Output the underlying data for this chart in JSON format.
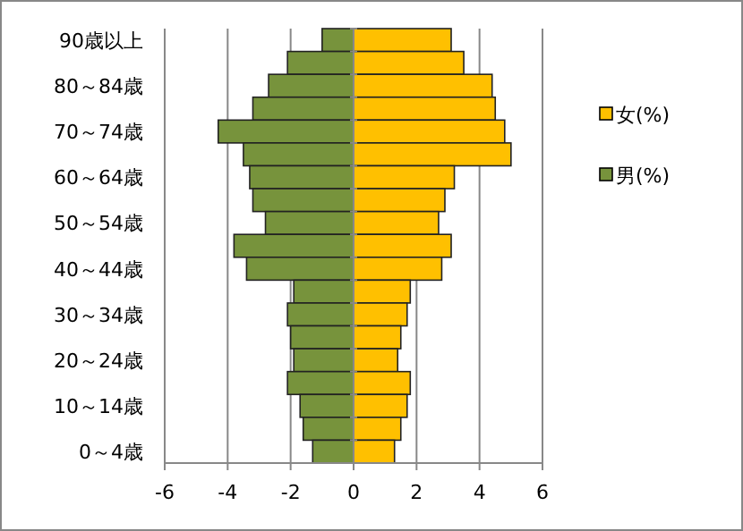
{
  "chart_data": {
    "type": "bar",
    "orientation": "horizontal",
    "categories": [
      "90歳以上",
      null,
      "80～84歳",
      null,
      "70～74歳",
      null,
      "60～64歳",
      null,
      "50～54歳",
      null,
      "40～44歳",
      null,
      "30～34歳",
      null,
      "20～24歳",
      null,
      "10～14歳",
      null,
      "0～4歳"
    ],
    "series": [
      {
        "name": "女(%)",
        "color": "#ffc000",
        "values": [
          3.1,
          3.5,
          4.4,
          4.5,
          4.8,
          5.0,
          3.2,
          2.9,
          2.7,
          3.1,
          2.8,
          1.8,
          1.7,
          1.5,
          1.4,
          1.8,
          1.7,
          1.5,
          1.3
        ]
      },
      {
        "name": "男(%)",
        "color": "#77933c",
        "values": [
          -1.0,
          -2.1,
          -2.7,
          -3.2,
          -4.3,
          -3.5,
          -3.3,
          -3.2,
          -2.8,
          -3.8,
          -3.4,
          -1.9,
          -2.1,
          -2.0,
          -1.9,
          -2.1,
          -1.7,
          -1.6,
          -1.3
        ]
      }
    ],
    "stacked": true,
    "xlim": [
      -6,
      6
    ],
    "xticks": [
      -6,
      -4,
      -2,
      0,
      2,
      4,
      6
    ],
    "grid": "x",
    "legend": "right"
  }
}
